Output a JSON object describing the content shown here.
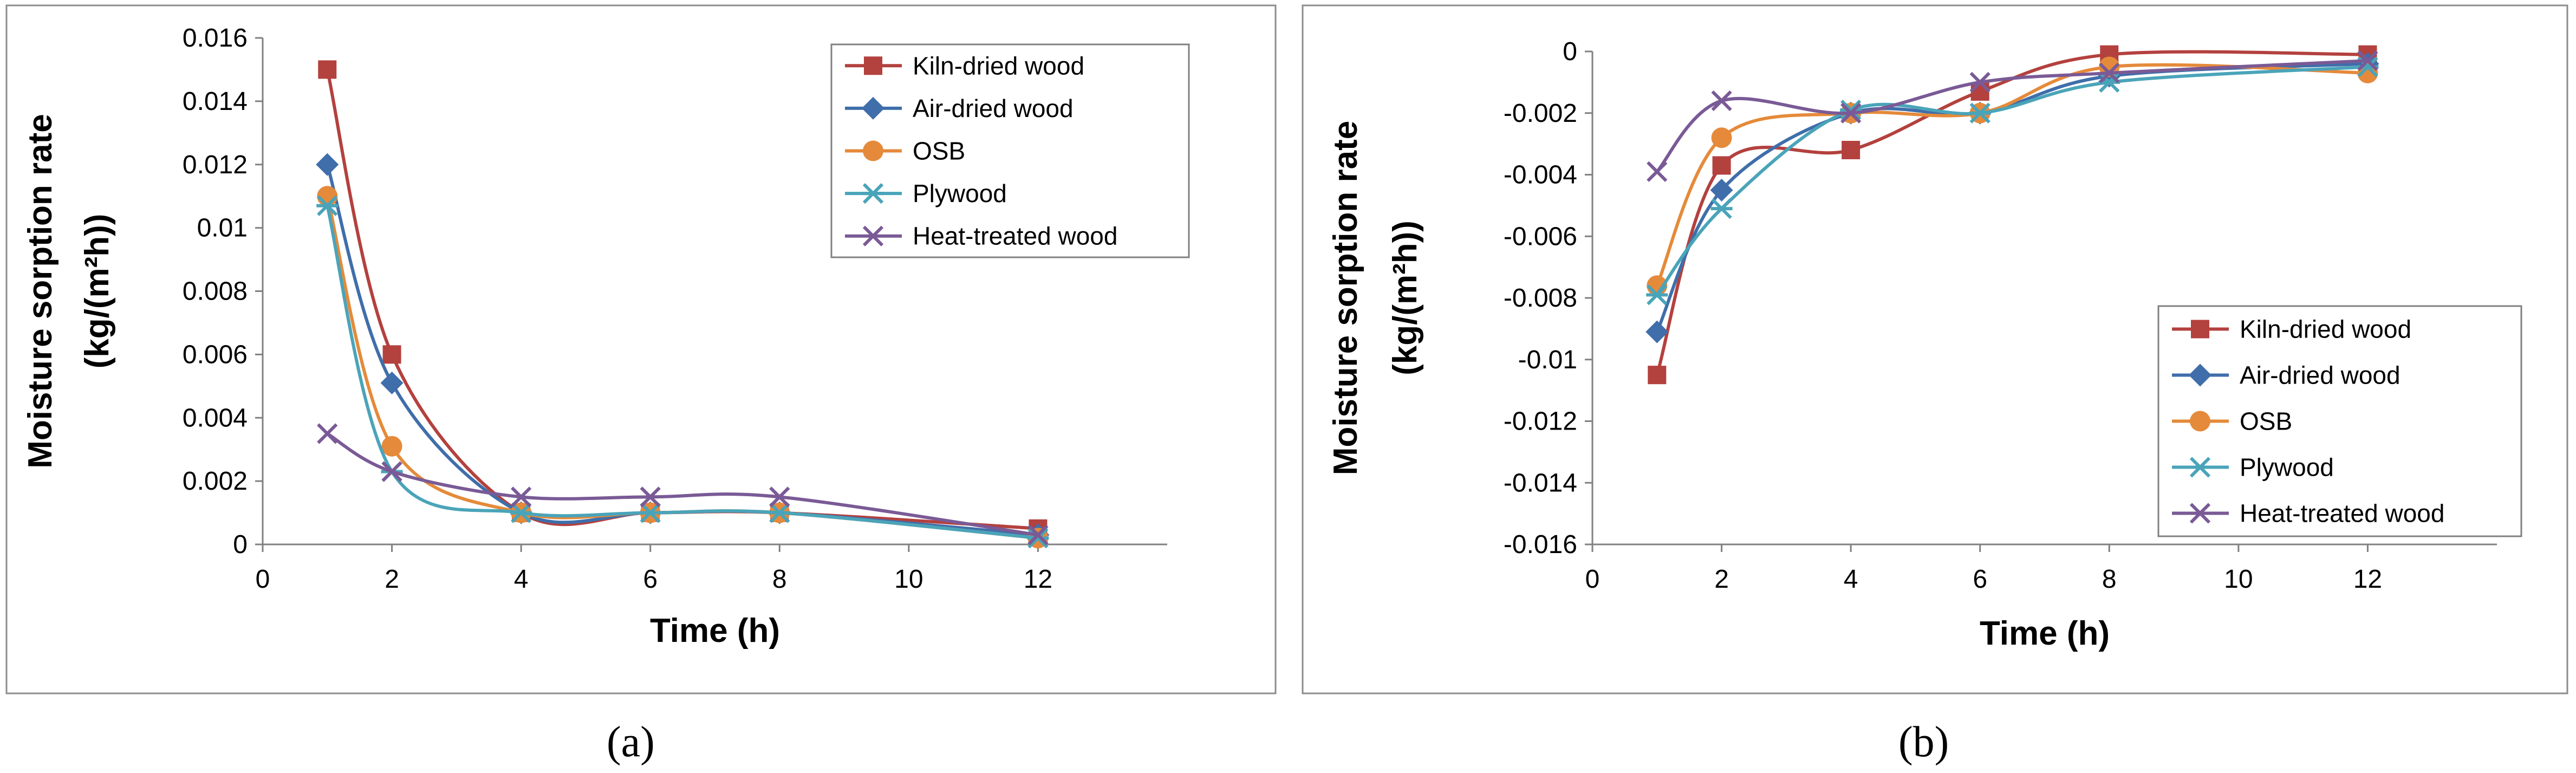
{
  "chart_data": [
    {
      "type": "line",
      "panel_label": "(a)",
      "xlabel": "Time (h)",
      "ylabel_line1": "Moisture  sorption rate",
      "ylabel_line2": "(kg/(m²h))",
      "xlim": [
        0,
        14
      ],
      "ylim": [
        0,
        0.016
      ],
      "x_ticks": [
        "0",
        "2",
        "4",
        "6",
        "8",
        "10",
        "12"
      ],
      "y_ticks": [
        "0",
        "0.002",
        "0.004",
        "0.006",
        "0.008",
        "0.01",
        "0.012",
        "0.014",
        "0.016"
      ],
      "x": [
        1,
        2,
        4,
        6,
        8,
        12
      ],
      "legend_position": "top-right",
      "grid": false,
      "series": [
        {
          "name": "Kiln-dried wood",
          "color": "#B3413E",
          "marker": "square",
          "values": [
            0.015,
            0.006,
            0.001,
            0.001,
            0.001,
            0.0005
          ]
        },
        {
          "name": "Air-dried wood",
          "color": "#3F6EAA",
          "marker": "diamond",
          "values": [
            0.012,
            0.0051,
            0.001,
            0.001,
            0.001,
            0.0003
          ]
        },
        {
          "name": "OSB",
          "color": "#E58A3A",
          "marker": "circle",
          "values": [
            0.011,
            0.0031,
            0.001,
            0.001,
            0.001,
            0.0002
          ]
        },
        {
          "name": "Plywood",
          "color": "#4AA4B9",
          "marker": "star",
          "values": [
            0.0107,
            0.0023,
            0.001,
            0.001,
            0.001,
            0.0002
          ]
        },
        {
          "name": "Heat-treated wood",
          "color": "#7A5A96",
          "marker": "x",
          "values": [
            0.0035,
            0.0023,
            0.0015,
            0.0015,
            0.0015,
            0.0003
          ]
        }
      ]
    },
    {
      "type": "line",
      "panel_label": "(b)",
      "xlabel": "Time (h)",
      "ylabel_line1": "Moisture  sorption rate",
      "ylabel_line2": "(kg/(m²h))",
      "xlim": [
        0,
        14
      ],
      "ylim": [
        -0.016,
        0
      ],
      "x_ticks": [
        "0",
        "2",
        "4",
        "6",
        "8",
        "10",
        "12"
      ],
      "y_ticks": [
        "0",
        "-0.002",
        "-0.004",
        "-0.006",
        "-0.008",
        "-0.01",
        "-0.012",
        "-0.014",
        "-0.016"
      ],
      "x": [
        1,
        2,
        4,
        6,
        8,
        12
      ],
      "legend_position": "bottom-right",
      "grid": false,
      "series": [
        {
          "name": "Kiln-dried wood",
          "color": "#B3413E",
          "marker": "square",
          "values": [
            -0.0105,
            -0.0037,
            -0.0032,
            -0.0013,
            -0.0001,
            -0.0001
          ]
        },
        {
          "name": "Air-dried wood",
          "color": "#3F6EAA",
          "marker": "diamond",
          "values": [
            -0.0091,
            -0.0045,
            -0.002,
            -0.002,
            -0.0008,
            -0.0004
          ]
        },
        {
          "name": "OSB",
          "color": "#E58A3A",
          "marker": "circle",
          "values": [
            -0.0076,
            -0.0028,
            -0.002,
            -0.002,
            -0.0005,
            -0.0007
          ]
        },
        {
          "name": "Plywood",
          "color": "#4AA4B9",
          "marker": "star",
          "values": [
            -0.0079,
            -0.0051,
            -0.0019,
            -0.002,
            -0.001,
            -0.0005
          ]
        },
        {
          "name": "Heat-treated wood",
          "color": "#7A5A96",
          "marker": "x",
          "values": [
            -0.0039,
            -0.0016,
            -0.002,
            -0.001,
            -0.0007,
            -0.0003
          ]
        }
      ]
    }
  ]
}
